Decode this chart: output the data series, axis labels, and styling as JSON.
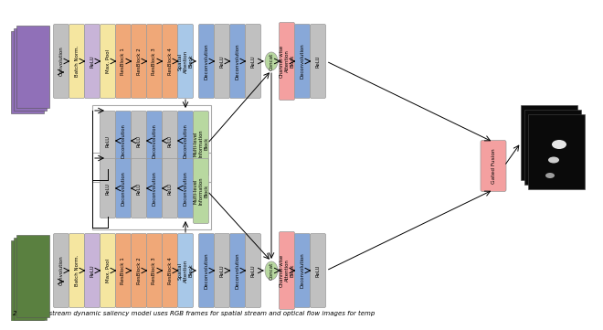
{
  "bg_color": "#ffffff",
  "caption": "2: Our two-stream dynamic saliency model uses RGB frames for spatial stream and optical flow images for temp",
  "colors": {
    "gray": "#c0c0c0",
    "yellow": "#f5e6a0",
    "purple_light": "#c8b4d8",
    "orange": "#f0a878",
    "blue_light": "#a8c8e8",
    "blue_med": "#88a8d8",
    "green_light": "#b8d8a0",
    "pink": "#f4a0a0",
    "dark": "#333333"
  },
  "top_img_color": "#9070b8",
  "bot_img_color": "#5a8040"
}
